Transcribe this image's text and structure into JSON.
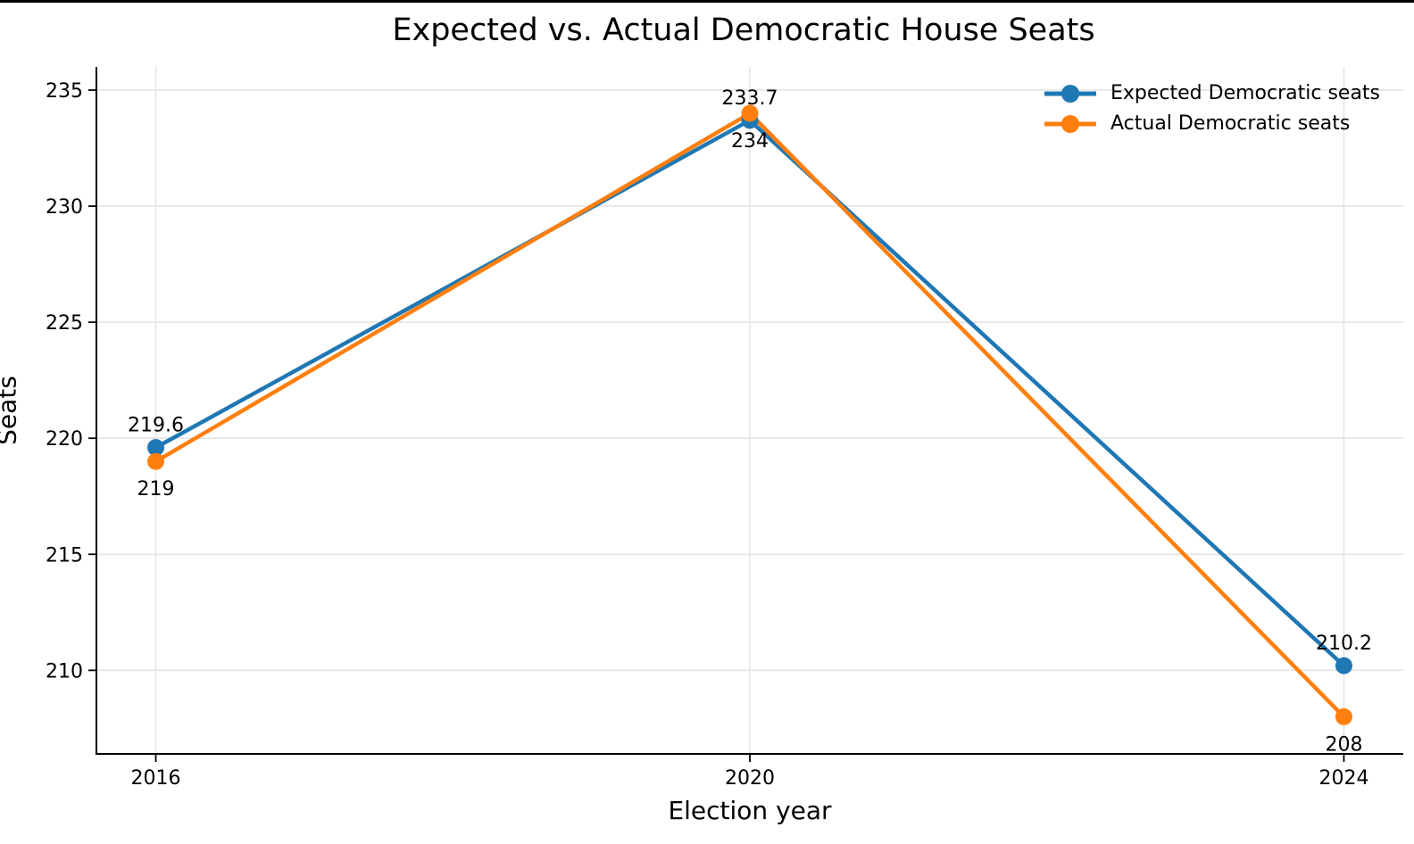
{
  "page": {
    "top_bar_color": "#000000",
    "background_color": "#ffffff"
  },
  "chart_data": {
    "type": "line",
    "title": "Expected vs. Actual Democratic House Seats",
    "xlabel": "Election year",
    "ylabel": "Seats",
    "x": [
      2016,
      2020,
      2024
    ],
    "xtick_labels": [
      "2016",
      "2020",
      "2024"
    ],
    "yticks": [
      210,
      215,
      220,
      225,
      230,
      235
    ],
    "ytick_labels": [
      "210",
      "215",
      "220",
      "225",
      "230",
      "235"
    ],
    "xlim": [
      2015.6,
      2024.4
    ],
    "ylim": [
      206.4,
      236.0
    ],
    "grid": true,
    "grid_color": "#e4e4e4",
    "spine_color": "#000000",
    "legend_position": "upper right",
    "series": [
      {
        "name": "Expected Democratic seats",
        "color": "#1f77b4",
        "values": [
          219.6,
          233.7,
          210.2
        ],
        "point_labels": [
          "219.6",
          "233.7",
          "210.2"
        ],
        "label_side": "above"
      },
      {
        "name": "Actual Democratic seats",
        "color": "#ff7f0e",
        "values": [
          219,
          234,
          208
        ],
        "point_labels": [
          "219",
          "234",
          "208"
        ],
        "label_side": "below"
      }
    ]
  }
}
